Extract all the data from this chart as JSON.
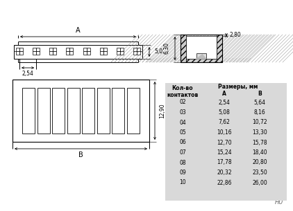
{
  "bg_color": "#ffffff",
  "line_color": "#000000",
  "table_bg": "#d9d9d9",
  "table_headers": [
    "Кол-во\nконтактов",
    "Размеры, мм\nA",
    "B"
  ],
  "table_col1": [
    "02",
    "03",
    "04",
    "05",
    "06",
    "07",
    "08",
    "09",
    "10"
  ],
  "table_col_A": [
    "2,54",
    "5,08",
    "7,62",
    "10,16",
    "12,70",
    "15,24",
    "17,78",
    "20,32",
    "22,86"
  ],
  "table_col_B": [
    "5,64",
    "8,16",
    "10,72",
    "13,30",
    "15,78",
    "18,40",
    "20,80",
    "23,50",
    "26,00"
  ],
  "dim_5_0": "5,0",
  "dim_6_30": "6,30",
  "dim_2_80": "2,80",
  "dim_2_54": "2,54",
  "dim_12_90": "12,90",
  "label_A": "A",
  "label_B": "B",
  "watermark": "HU"
}
